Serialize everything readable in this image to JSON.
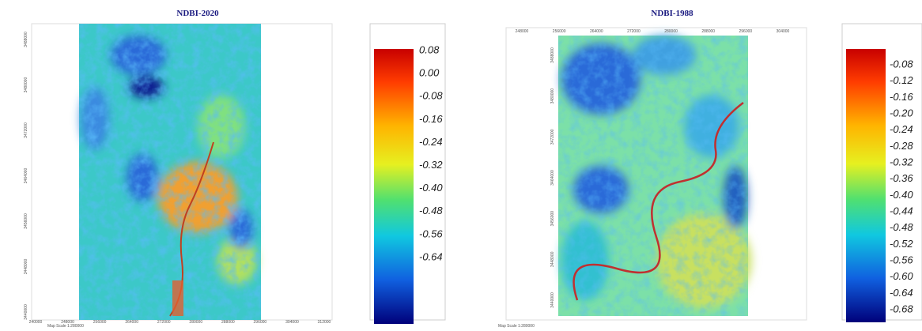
{
  "panels": [
    {
      "title": "NDBI-2020",
      "legend_labels": [
        "0.08",
        "0.00",
        "-0.08",
        "-0.16",
        "-0.24",
        "-0.32",
        "-0.40",
        "-0.48",
        "-0.56",
        "-0.64"
      ],
      "x_labels": [
        "240000",
        "248000",
        "256000",
        "264000",
        "272000",
        "280000",
        "288000",
        "296000",
        "304000",
        "312000"
      ],
      "y_labels": [
        "3488000",
        "3480000",
        "3472000",
        "3464000",
        "3456000",
        "3448000",
        "3440000"
      ],
      "scale": "Map Scale 1:280000"
    },
    {
      "title": "NDBI-1988",
      "legend_labels": [
        "-0.08",
        "-0.12",
        "-0.16",
        "-0.20",
        "-0.24",
        "-0.28",
        "-0.32",
        "-0.36",
        "-0.40",
        "-0.44",
        "-0.48",
        "-0.52",
        "-0.56",
        "-0.60",
        "-0.64",
        "-0.68"
      ],
      "x_labels": [
        "248000",
        "256000",
        "264000",
        "272000",
        "280000",
        "288000",
        "296000",
        "304000"
      ],
      "y_labels": [
        "3488000",
        "3480000",
        "3472000",
        "3464000",
        "3456000",
        "3448000",
        "3440000"
      ],
      "scale": "Map Scale 1:280000"
    }
  ]
}
